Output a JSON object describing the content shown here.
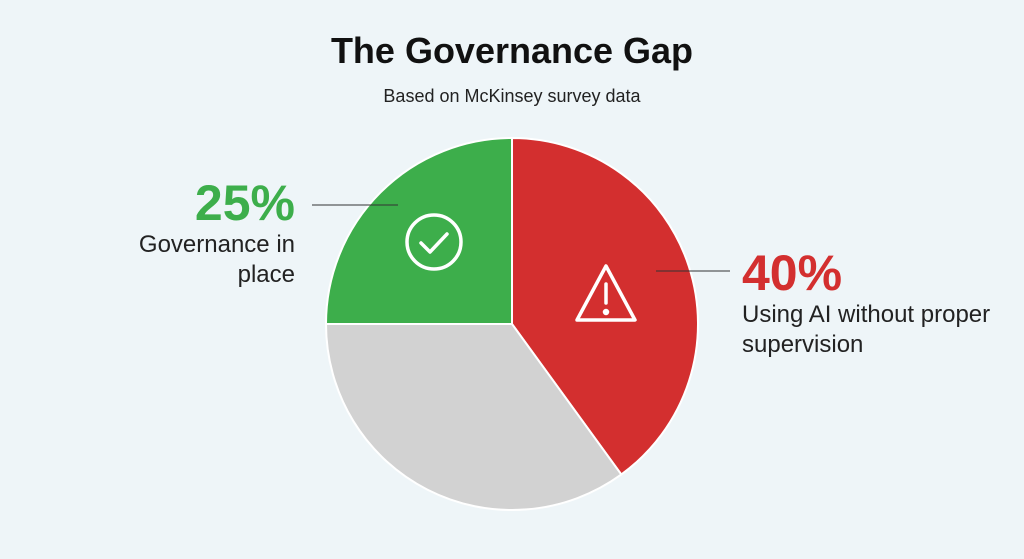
{
  "chart_data": {
    "type": "pie",
    "title": "The Governance Gap",
    "subtitle": "Based on McKinsey survey data",
    "categories": [
      "Using AI without proper supervision",
      null,
      "Governance in place"
    ],
    "values": [
      40,
      35,
      25
    ],
    "value_labels": [
      "40%",
      null,
      "25%"
    ],
    "colors": [
      "#d32f2f",
      "#d2d2d2",
      "#3dae4b"
    ]
  }
}
